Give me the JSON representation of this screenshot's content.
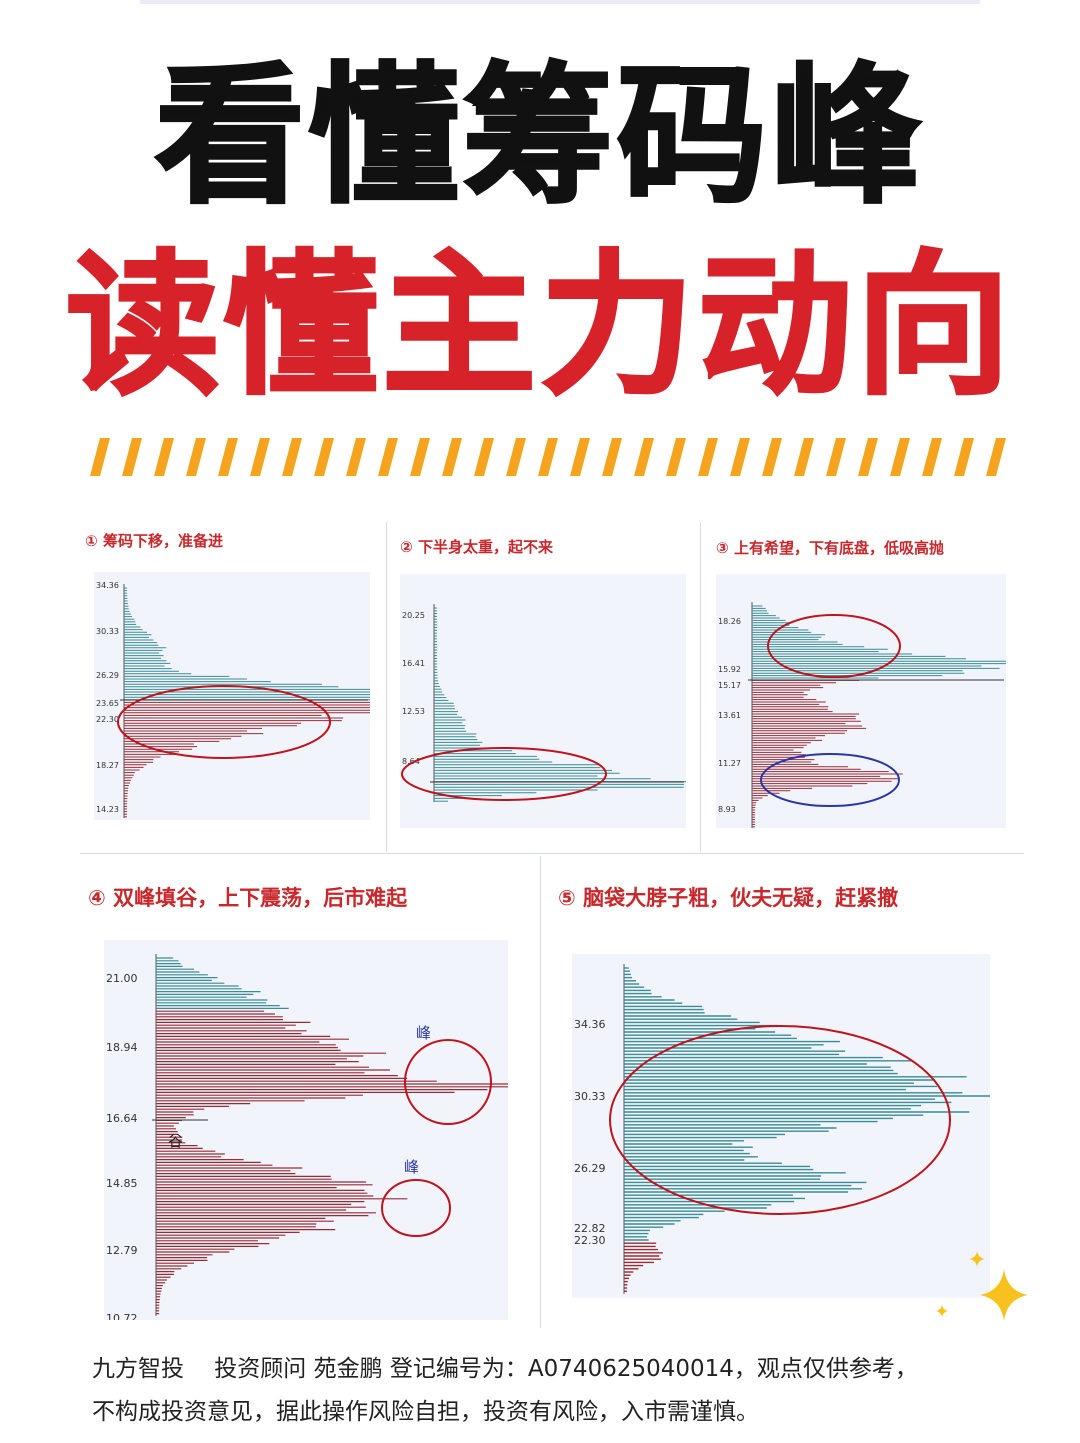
{
  "title_line1": "看懂筹码峰",
  "title_line2": "读懂主力动向",
  "colors": {
    "red": "#d7222a",
    "orange": "#f5a21f",
    "teal": "#3a8c96",
    "maroon": "#9c2a35",
    "circle": "#c0131c",
    "blue": "#2a35a8"
  },
  "panels": [
    {
      "num": "①",
      "title": "筹码下移，准备进",
      "ticks": [
        "34.36",
        "30.33",
        "26.29",
        "23.65",
        "22.30",
        "18.27",
        "14.23"
      ]
    },
    {
      "num": "②",
      "title": "下半身太重，起不来",
      "ticks": [
        "20.25",
        "16.41",
        "12.53",
        "8.64"
      ]
    },
    {
      "num": "③",
      "title": "上有希望，下有底盘，低吸高抛",
      "ticks": [
        "18.26",
        "15.92",
        "15.17",
        "13.61",
        "11.27",
        "8.93"
      ]
    },
    {
      "num": "④",
      "title": "双峰填谷，上下震荡，后市难起",
      "ticks": [
        "21.00",
        "18.94",
        "16.64",
        "14.85",
        "12.79",
        "10.72"
      ],
      "labels": {
        "peak": "峰",
        "valley": "谷"
      }
    },
    {
      "num": "⑤",
      "title": "脑袋大脖子粗，伙夫无疑，赶紧撤",
      "ticks": [
        "34.36",
        "30.33",
        "26.29",
        "22.82",
        "22.30"
      ]
    }
  ],
  "footer": {
    "line1": "九方智投　 投资顾问  苑金鹏  登记编号为：A0740625040014，观点仅供参考，",
    "line2": "不构成投资意见，据此操作风险自担，投资有风险，入市需谨慎。"
  }
}
